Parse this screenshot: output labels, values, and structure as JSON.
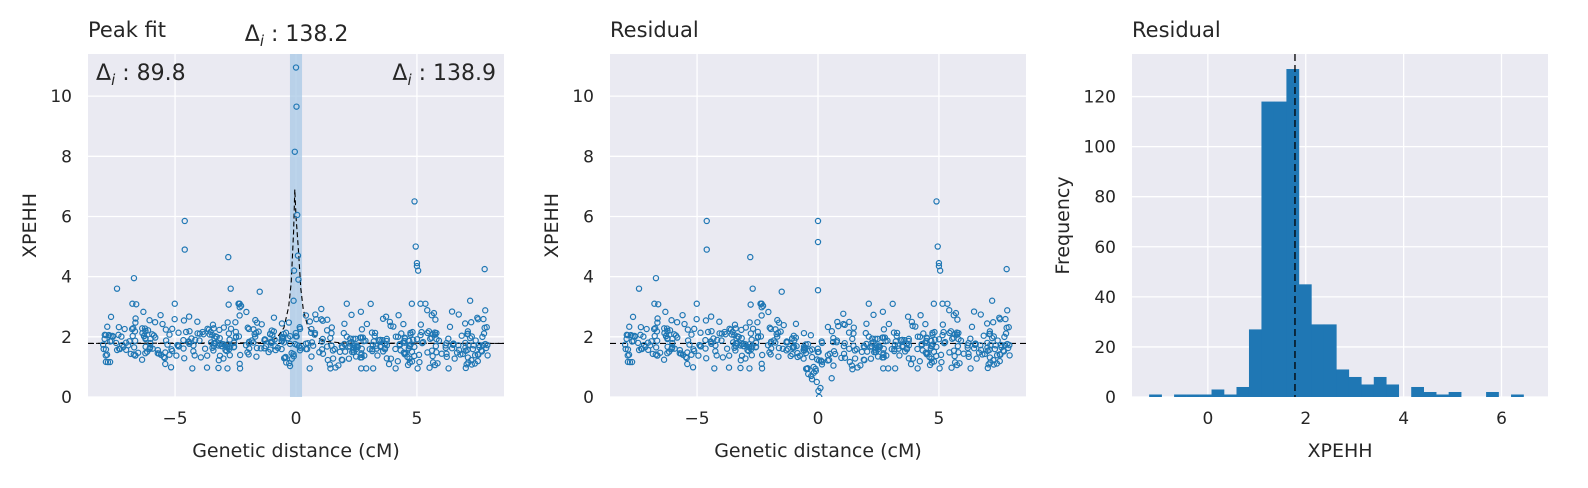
{
  "colors": {
    "axes_bg": "#eaeaf2",
    "grid": "#ffffff",
    "marker": "#1f77b4",
    "bar": "#1f77b4",
    "fit_line": "#000000",
    "peak_band": "#a8c8e6"
  },
  "chart_data": [
    {
      "type": "scatter",
      "title": "Peak fit",
      "xlabel": "Genetic distance (cM)",
      "ylabel": "XPEHH",
      "xlim": [
        -8.6,
        8.6
      ],
      "ylim": [
        0,
        11.4
      ],
      "xticks": [
        -5,
        0,
        5
      ],
      "xtick_labels": [
        "−5",
        "0",
        "5"
      ],
      "yticks": [
        0,
        2,
        4,
        6,
        8,
        10
      ],
      "ytick_labels": [
        "0",
        "2",
        "4",
        "6",
        "8",
        "10"
      ],
      "grid": true,
      "baseline": 1.78,
      "peak_location": -0.05,
      "peak_band": [
        -0.25,
        0.25
      ],
      "annotations": [
        {
          "label": "Δ",
          "sub": "i",
          "value": " : 89.8",
          "position": "top-left"
        },
        {
          "label": "Δ",
          "sub": "i",
          "value": " : 138.2",
          "position": "above-peak"
        },
        {
          "label": "Δ",
          "sub": "i",
          "value": " : 138.9",
          "position": "top-right"
        }
      ],
      "fit_curve": {
        "x": [
          -8.6,
          -1.5,
          -0.8,
          -0.5,
          -0.3,
          -0.2,
          -0.1,
          -0.05,
          0.0,
          0.1,
          0.2,
          0.3,
          0.5,
          0.8,
          1.2,
          2.0,
          8.6
        ],
        "y": [
          1.78,
          1.8,
          1.95,
          2.3,
          3.0,
          3.8,
          5.5,
          6.9,
          6.0,
          4.9,
          3.6,
          2.9,
          2.3,
          2.0,
          1.85,
          1.79,
          1.78
        ]
      },
      "outliers": {
        "x": [
          -4.6,
          -4.6,
          -2.8,
          -6.7,
          -7.4,
          -2.7,
          -1.5,
          -0.1,
          -0.08,
          -0.05,
          0.0,
          0.02,
          0.05,
          0.08,
          0.1,
          4.9,
          4.95,
          5.0,
          5.0,
          5.05,
          7.8,
          7.2,
          3.6
        ],
        "y": [
          5.85,
          4.9,
          4.65,
          3.95,
          3.6,
          3.6,
          3.5,
          3.2,
          4.2,
          8.15,
          10.95,
          9.65,
          6.05,
          4.7,
          3.9,
          6.5,
          5.0,
          4.45,
          4.35,
          4.2,
          4.25,
          3.2,
          2.6
        ]
      }
    },
    {
      "type": "scatter",
      "title": "Residual",
      "xlabel": "Genetic distance (cM)",
      "ylabel": "XPEHH",
      "xlim": [
        -8.6,
        8.6
      ],
      "ylim": [
        0,
        11.4
      ],
      "xticks": [
        -5,
        0,
        5
      ],
      "xtick_labels": [
        "−5",
        "0",
        "5"
      ],
      "yticks": [
        0,
        2,
        4,
        6,
        8,
        10
      ],
      "ytick_labels": [
        "0",
        "2",
        "4",
        "6",
        "8",
        "10"
      ],
      "grid": true,
      "baseline": 1.78,
      "outliers": {
        "x": [
          -4.6,
          -4.6,
          -2.8,
          -6.7,
          -7.4,
          -2.7,
          -1.5,
          0.0,
          0.0,
          0.0,
          0.05,
          0.1,
          -0.05,
          0.02,
          4.9,
          4.95,
          5.0,
          5.0,
          5.05,
          7.8,
          7.2
        ],
        "y": [
          5.85,
          4.9,
          4.65,
          3.95,
          3.6,
          3.6,
          3.5,
          5.85,
          5.15,
          3.55,
          0.0,
          0.3,
          0.5,
          0.2,
          6.5,
          5.0,
          4.45,
          4.35,
          4.2,
          4.25,
          3.2
        ]
      }
    },
    {
      "type": "bar",
      "title": "Residual",
      "xlabel": "XPEHH",
      "ylabel": "Frequency",
      "xlim": [
        -1.55,
        6.95
      ],
      "ylim": [
        0,
        137
      ],
      "xticks": [
        0,
        2,
        4,
        6
      ],
      "xtick_labels": [
        "0",
        "2",
        "4",
        "6"
      ],
      "yticks": [
        0,
        20,
        40,
        60,
        80,
        100,
        120
      ],
      "ytick_labels": [
        "0",
        "20",
        "40",
        "60",
        "80",
        "100",
        "120"
      ],
      "grid": true,
      "mean_line": 1.78,
      "bin_width": 0.255,
      "bin_starts": [
        -1.2,
        -0.945,
        -0.69,
        -0.435,
        -0.18,
        0.075,
        0.33,
        0.585,
        0.84,
        1.095,
        1.35,
        1.605,
        1.86,
        2.115,
        2.37,
        2.625,
        2.88,
        3.135,
        3.39,
        3.645,
        3.9,
        4.155,
        4.41,
        4.665,
        4.92,
        5.175,
        5.43,
        5.685,
        5.94,
        6.195,
        6.45
      ],
      "values": [
        1,
        0,
        1,
        1,
        1,
        3,
        1,
        4,
        27,
        118,
        118,
        131,
        45,
        29,
        29,
        11,
        8,
        5,
        8,
        5,
        0,
        4,
        2,
        1,
        2,
        0,
        0,
        2,
        0,
        1,
        0
      ]
    }
  ]
}
